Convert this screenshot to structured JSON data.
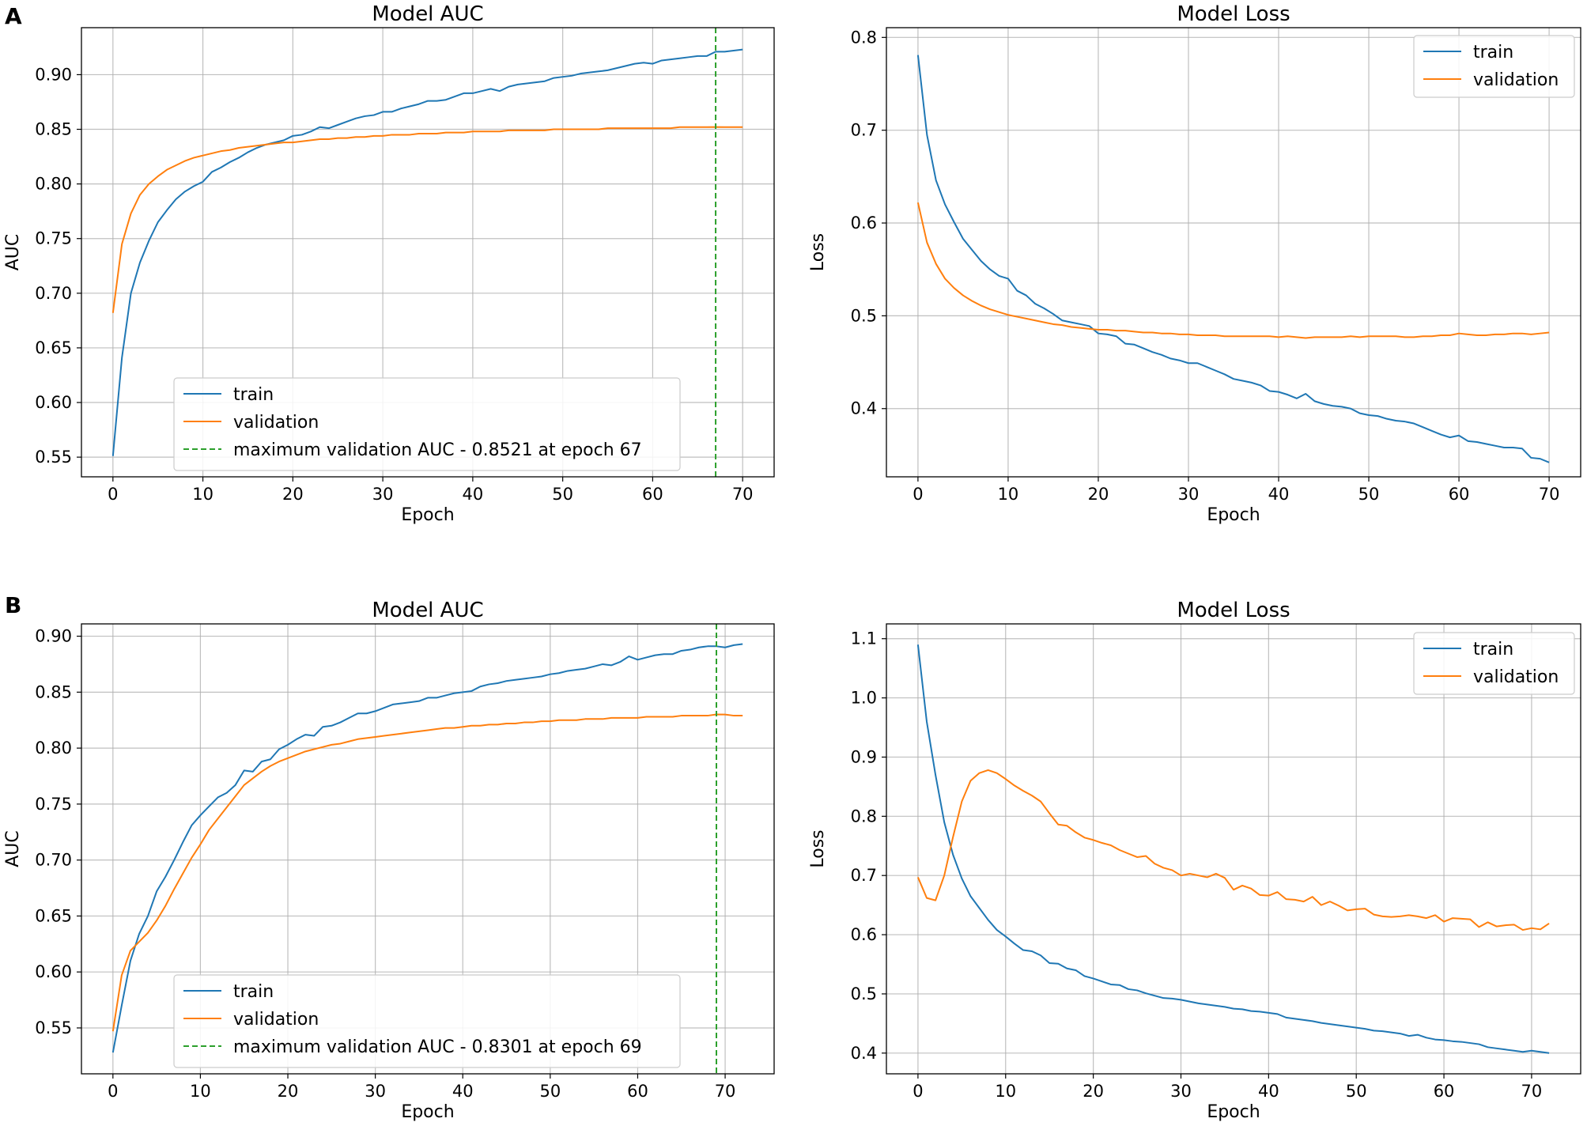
{
  "panel_labels": [
    "A",
    "B"
  ],
  "colors": {
    "train": "#1f77b4",
    "validation": "#ff7f0e",
    "marker": "#2ca02c"
  },
  "chart_data": [
    {
      "type": "line",
      "panel": "A",
      "title": "Model AUC",
      "xlabel": "Epoch",
      "ylabel": "AUC",
      "xlim": [
        -3.5,
        73.5
      ],
      "ylim": [
        0.532,
        0.943
      ],
      "xticks": [
        0,
        10,
        20,
        30,
        40,
        50,
        60,
        70
      ],
      "yticks": [
        0.55,
        0.6,
        0.65,
        0.7,
        0.75,
        0.8,
        0.85,
        0.9
      ],
      "ytick_labels": [
        "0.55",
        "0.60",
        "0.65",
        "0.70",
        "0.75",
        "0.80",
        "0.85",
        "0.90"
      ],
      "grid": true,
      "legend_position": "lower-center",
      "vline": {
        "x": 67,
        "label": "maximum validation AUC - 0.8521 at epoch 67"
      },
      "series": [
        {
          "name": "train",
          "x_start": 0,
          "x_step": 1,
          "values": [
            0.551,
            0.641,
            0.7,
            0.728,
            0.748,
            0.765,
            0.776,
            0.786,
            0.793,
            0.798,
            0.802,
            0.811,
            0.815,
            0.82,
            0.824,
            0.829,
            0.833,
            0.836,
            0.838,
            0.84,
            0.844,
            0.845,
            0.848,
            0.852,
            0.851,
            0.854,
            0.857,
            0.86,
            0.862,
            0.863,
            0.866,
            0.866,
            0.869,
            0.871,
            0.873,
            0.876,
            0.876,
            0.877,
            0.88,
            0.883,
            0.883,
            0.885,
            0.887,
            0.885,
            0.889,
            0.891,
            0.892,
            0.893,
            0.894,
            0.897,
            0.898,
            0.899,
            0.901,
            0.902,
            0.903,
            0.904,
            0.906,
            0.908,
            0.91,
            0.911,
            0.91,
            0.913,
            0.914,
            0.915,
            0.916,
            0.917,
            0.917,
            0.921,
            0.921,
            0.922,
            0.923
          ]
        },
        {
          "name": "validation",
          "x_start": 0,
          "x_step": 1,
          "values": [
            0.682,
            0.745,
            0.773,
            0.79,
            0.8,
            0.807,
            0.813,
            0.817,
            0.821,
            0.824,
            0.826,
            0.828,
            0.83,
            0.831,
            0.833,
            0.834,
            0.835,
            0.836,
            0.837,
            0.838,
            0.838,
            0.839,
            0.84,
            0.841,
            0.841,
            0.842,
            0.842,
            0.843,
            0.843,
            0.844,
            0.844,
            0.845,
            0.845,
            0.845,
            0.846,
            0.846,
            0.846,
            0.847,
            0.847,
            0.847,
            0.848,
            0.848,
            0.848,
            0.848,
            0.849,
            0.849,
            0.849,
            0.849,
            0.849,
            0.85,
            0.85,
            0.85,
            0.85,
            0.85,
            0.85,
            0.851,
            0.851,
            0.851,
            0.851,
            0.851,
            0.851,
            0.851,
            0.851,
            0.852,
            0.852,
            0.852,
            0.852,
            0.8521,
            0.852,
            0.852,
            0.852
          ]
        }
      ]
    },
    {
      "type": "line",
      "panel": "A",
      "title": "Model Loss",
      "xlabel": "Epoch",
      "ylabel": "Loss",
      "xlim": [
        -3.5,
        73.5
      ],
      "ylim": [
        0.3265,
        0.8105
      ],
      "xticks": [
        0,
        10,
        20,
        30,
        40,
        50,
        60,
        70
      ],
      "yticks": [
        0.4,
        0.5,
        0.6,
        0.7,
        0.8
      ],
      "ytick_labels": [
        "0.4",
        "0.5",
        "0.6",
        "0.7",
        "0.8"
      ],
      "grid": true,
      "legend_position": "top-right",
      "series": [
        {
          "name": "train",
          "x_start": 0,
          "x_step": 1,
          "values": [
            0.781,
            0.695,
            0.646,
            0.62,
            0.601,
            0.583,
            0.571,
            0.559,
            0.55,
            0.543,
            0.54,
            0.527,
            0.522,
            0.513,
            0.508,
            0.502,
            0.495,
            0.493,
            0.491,
            0.489,
            0.481,
            0.48,
            0.478,
            0.47,
            0.469,
            0.465,
            0.461,
            0.458,
            0.454,
            0.452,
            0.449,
            0.449,
            0.445,
            0.441,
            0.437,
            0.432,
            0.43,
            0.428,
            0.425,
            0.419,
            0.418,
            0.415,
            0.411,
            0.416,
            0.408,
            0.405,
            0.403,
            0.402,
            0.4,
            0.395,
            0.393,
            0.392,
            0.389,
            0.387,
            0.386,
            0.384,
            0.38,
            0.376,
            0.372,
            0.369,
            0.371,
            0.365,
            0.364,
            0.362,
            0.36,
            0.358,
            0.358,
            0.357,
            0.347,
            0.346,
            0.342
          ]
        },
        {
          "name": "validation",
          "x_start": 0,
          "x_step": 1,
          "values": [
            0.622,
            0.579,
            0.556,
            0.54,
            0.53,
            0.522,
            0.516,
            0.511,
            0.507,
            0.504,
            0.501,
            0.499,
            0.497,
            0.495,
            0.493,
            0.491,
            0.49,
            0.488,
            0.487,
            0.486,
            0.485,
            0.485,
            0.484,
            0.484,
            0.483,
            0.482,
            0.482,
            0.481,
            0.481,
            0.48,
            0.48,
            0.479,
            0.479,
            0.479,
            0.478,
            0.478,
            0.478,
            0.478,
            0.478,
            0.478,
            0.477,
            0.478,
            0.477,
            0.476,
            0.477,
            0.477,
            0.477,
            0.477,
            0.478,
            0.477,
            0.478,
            0.478,
            0.478,
            0.478,
            0.477,
            0.477,
            0.478,
            0.478,
            0.479,
            0.479,
            0.481,
            0.48,
            0.479,
            0.479,
            0.48,
            0.48,
            0.481,
            0.481,
            0.48,
            0.481,
            0.482
          ]
        }
      ]
    },
    {
      "type": "line",
      "panel": "B",
      "title": "Model AUC",
      "xlabel": "Epoch",
      "ylabel": "AUC",
      "xlim": [
        -3.6,
        75.6
      ],
      "ylim": [
        0.509,
        0.911
      ],
      "xticks": [
        0,
        10,
        20,
        30,
        40,
        50,
        60,
        70
      ],
      "yticks": [
        0.55,
        0.6,
        0.65,
        0.7,
        0.75,
        0.8,
        0.85,
        0.9
      ],
      "ytick_labels": [
        "0.55",
        "0.60",
        "0.65",
        "0.70",
        "0.75",
        "0.80",
        "0.85",
        "0.90"
      ],
      "grid": true,
      "legend_position": "lower-center",
      "vline": {
        "x": 69,
        "label": "maximum validation AUC - 0.8301 at epoch 69"
      },
      "series": [
        {
          "name": "train",
          "x_start": 0,
          "x_step": 1,
          "values": [
            0.528,
            0.57,
            0.61,
            0.634,
            0.65,
            0.672,
            0.685,
            0.7,
            0.716,
            0.731,
            0.74,
            0.748,
            0.756,
            0.76,
            0.767,
            0.78,
            0.779,
            0.788,
            0.79,
            0.799,
            0.803,
            0.808,
            0.812,
            0.811,
            0.819,
            0.82,
            0.823,
            0.827,
            0.831,
            0.831,
            0.833,
            0.836,
            0.839,
            0.84,
            0.841,
            0.842,
            0.845,
            0.845,
            0.847,
            0.849,
            0.85,
            0.851,
            0.855,
            0.857,
            0.858,
            0.86,
            0.861,
            0.862,
            0.863,
            0.864,
            0.866,
            0.867,
            0.869,
            0.87,
            0.871,
            0.873,
            0.875,
            0.874,
            0.877,
            0.882,
            0.879,
            0.881,
            0.883,
            0.884,
            0.884,
            0.887,
            0.888,
            0.89,
            0.891,
            0.891,
            0.89,
            0.892,
            0.893
          ]
        },
        {
          "name": "validation",
          "x_start": 0,
          "x_step": 1,
          "values": [
            0.547,
            0.597,
            0.619,
            0.627,
            0.635,
            0.646,
            0.659,
            0.674,
            0.688,
            0.702,
            0.714,
            0.727,
            0.737,
            0.747,
            0.757,
            0.767,
            0.773,
            0.779,
            0.784,
            0.788,
            0.791,
            0.794,
            0.797,
            0.799,
            0.801,
            0.803,
            0.804,
            0.806,
            0.808,
            0.809,
            0.81,
            0.811,
            0.812,
            0.813,
            0.814,
            0.815,
            0.816,
            0.817,
            0.818,
            0.818,
            0.819,
            0.82,
            0.82,
            0.821,
            0.821,
            0.822,
            0.822,
            0.823,
            0.823,
            0.824,
            0.824,
            0.825,
            0.825,
            0.825,
            0.826,
            0.826,
            0.826,
            0.827,
            0.827,
            0.827,
            0.827,
            0.828,
            0.828,
            0.828,
            0.828,
            0.829,
            0.829,
            0.829,
            0.829,
            0.8301,
            0.83,
            0.829,
            0.829
          ]
        }
      ]
    },
    {
      "type": "line",
      "panel": "B",
      "title": "Model Loss",
      "xlabel": "Epoch",
      "ylabel": "Loss",
      "xlim": [
        -3.6,
        75.6
      ],
      "ylim": [
        0.365,
        1.125
      ],
      "xticks": [
        0,
        10,
        20,
        30,
        40,
        50,
        60,
        70
      ],
      "yticks": [
        0.4,
        0.5,
        0.6,
        0.7,
        0.8,
        0.9,
        1.0,
        1.1
      ],
      "ytick_labels": [
        "0.4",
        "0.5",
        "0.6",
        "0.7",
        "0.8",
        "0.9",
        "1.0",
        "1.1"
      ],
      "grid": true,
      "legend_position": "top-right",
      "series": [
        {
          "name": "train",
          "x_start": 0,
          "x_step": 1,
          "values": [
            1.09,
            0.96,
            0.87,
            0.79,
            0.735,
            0.695,
            0.665,
            0.645,
            0.625,
            0.608,
            0.597,
            0.585,
            0.574,
            0.572,
            0.565,
            0.552,
            0.551,
            0.543,
            0.54,
            0.53,
            0.526,
            0.521,
            0.516,
            0.515,
            0.508,
            0.506,
            0.501,
            0.497,
            0.493,
            0.492,
            0.49,
            0.487,
            0.484,
            0.482,
            0.48,
            0.478,
            0.475,
            0.474,
            0.471,
            0.47,
            0.468,
            0.466,
            0.46,
            0.458,
            0.456,
            0.454,
            0.451,
            0.449,
            0.447,
            0.445,
            0.443,
            0.441,
            0.438,
            0.437,
            0.435,
            0.433,
            0.429,
            0.431,
            0.426,
            0.423,
            0.422,
            0.42,
            0.419,
            0.417,
            0.415,
            0.41,
            0.408,
            0.406,
            0.404,
            0.402,
            0.404,
            0.402,
            0.4
          ]
        },
        {
          "name": "validation",
          "x_start": 0,
          "x_step": 1,
          "values": [
            0.697,
            0.662,
            0.658,
            0.7,
            0.765,
            0.825,
            0.86,
            0.873,
            0.878,
            0.873,
            0.863,
            0.852,
            0.843,
            0.835,
            0.825,
            0.805,
            0.786,
            0.784,
            0.773,
            0.764,
            0.76,
            0.755,
            0.751,
            0.743,
            0.737,
            0.731,
            0.733,
            0.72,
            0.713,
            0.709,
            0.7,
            0.703,
            0.7,
            0.697,
            0.703,
            0.696,
            0.676,
            0.683,
            0.678,
            0.667,
            0.666,
            0.672,
            0.66,
            0.659,
            0.656,
            0.664,
            0.65,
            0.656,
            0.649,
            0.641,
            0.643,
            0.644,
            0.634,
            0.631,
            0.63,
            0.631,
            0.633,
            0.631,
            0.628,
            0.633,
            0.622,
            0.628,
            0.627,
            0.626,
            0.613,
            0.621,
            0.614,
            0.616,
            0.617,
            0.608,
            0.611,
            0.609,
            0.619
          ]
        }
      ]
    }
  ]
}
